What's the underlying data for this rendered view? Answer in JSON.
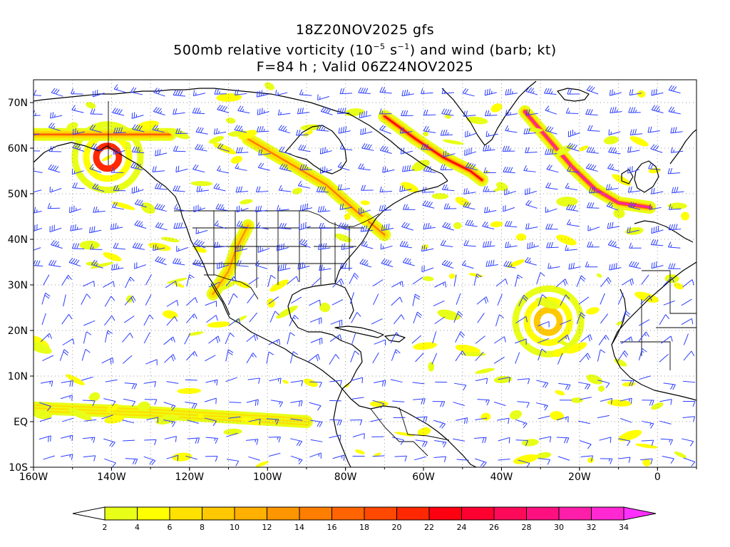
{
  "header": {
    "line1": "18Z20NOV2025 gfs",
    "line2_pre": "500mb relative vorticity (10",
    "line2_exp1": "−5",
    "line2_mid": " s",
    "line2_exp2": "−1",
    "line2_post": ") and wind (barb; kt)",
    "line3": "F=84 h ; Valid 06Z24NOV2025"
  },
  "axes": {
    "lat_labels": [
      "70N",
      "60N",
      "50N",
      "40N",
      "30N",
      "20N",
      "10N",
      "EQ",
      "10S"
    ],
    "lat_values": [
      70,
      60,
      50,
      40,
      30,
      20,
      10,
      0,
      -10
    ],
    "lon_labels": [
      "160W",
      "140W",
      "120W",
      "100W",
      "80W",
      "60W",
      "40W",
      "20W",
      "0"
    ],
    "lon_values": [
      -160,
      -140,
      -120,
      -100,
      -80,
      -60,
      -40,
      -20,
      0
    ],
    "lon_range": [
      -160,
      10
    ],
    "lat_range": [
      -10,
      75
    ],
    "grid": "dotted gray"
  },
  "colorbar": {
    "labels": [
      "2",
      "4",
      "6",
      "8",
      "10",
      "12",
      "14",
      "16",
      "18",
      "20",
      "22",
      "24",
      "26",
      "28",
      "30",
      "32",
      "34"
    ],
    "colors": [
      "#e8ff18",
      "#ffff00",
      "#ffe100",
      "#ffc800",
      "#ffb000",
      "#ff9600",
      "#ff7e00",
      "#ff6400",
      "#ff4800",
      "#ff2800",
      "#ff0010",
      "#ff0030",
      "#ff0a5a",
      "#ff1080",
      "#ff1eaa",
      "#ff28d2",
      "#ff30ff"
    ],
    "below_color": "#ffffff",
    "above_color": "#ff30ff"
  },
  "map_colors": {
    "coastline": "#000000",
    "barb": "#2a3cff",
    "grid": "#999999"
  },
  "chart_data": {
    "type": "heatmap",
    "title": "18Z20NOV2025 gfs / 500mb relative vorticity (10−5 s−1) and wind (barb; kt) / F=84 h ; Valid 06Z24NOV2025",
    "field": "500mb relative vorticity",
    "units": "10^-5 s^-1",
    "levels": [
      2,
      4,
      6,
      8,
      10,
      12,
      14,
      16,
      18,
      20,
      22,
      24,
      26,
      28,
      30,
      32,
      34
    ],
    "xlim": [
      -160,
      10
    ],
    "ylim": [
      -10,
      75
    ],
    "features": [
      {
        "name": "jet streak trough",
        "path": [
          [
            -34,
            68
          ],
          [
            -28,
            62
          ],
          [
            -22,
            56
          ],
          [
            -16,
            51
          ],
          [
            -10,
            48
          ],
          [
            -2,
            47
          ]
        ],
        "peak": 30
      },
      {
        "name": "newfoundland trough",
        "path": [
          [
            -70,
            67
          ],
          [
            -62,
            62
          ],
          [
            -55,
            58
          ],
          [
            -48,
            55
          ],
          [
            -45,
            53
          ]
        ],
        "peak": 22
      },
      {
        "name": "central atlantic vortex",
        "center": [
          -28,
          22
        ],
        "peak": 8
      },
      {
        "name": "gulf of alaska vortex",
        "center": [
          -141,
          58
        ],
        "peak": 20
      },
      {
        "name": "arctic band",
        "path": [
          [
            -160,
            63
          ],
          [
            -140,
            63
          ],
          [
            -125,
            63
          ]
        ],
        "peak": 16
      },
      {
        "name": "great lakes band",
        "path": [
          [
            -105,
            62
          ],
          [
            -95,
            57
          ],
          [
            -85,
            52
          ],
          [
            -77,
            46
          ],
          [
            -70,
            41
          ]
        ],
        "peak": 14
      },
      {
        "name": "southwest trough",
        "path": [
          [
            -105,
            43
          ],
          [
            -108,
            38
          ],
          [
            -110,
            33
          ],
          [
            -114,
            28
          ]
        ],
        "peak": 12
      },
      {
        "name": "itcz band",
        "path": [
          [
            -160,
            3
          ],
          [
            -130,
            2
          ],
          [
            -110,
            1
          ],
          [
            -90,
            0
          ]
        ],
        "peak": 6
      }
    ]
  }
}
